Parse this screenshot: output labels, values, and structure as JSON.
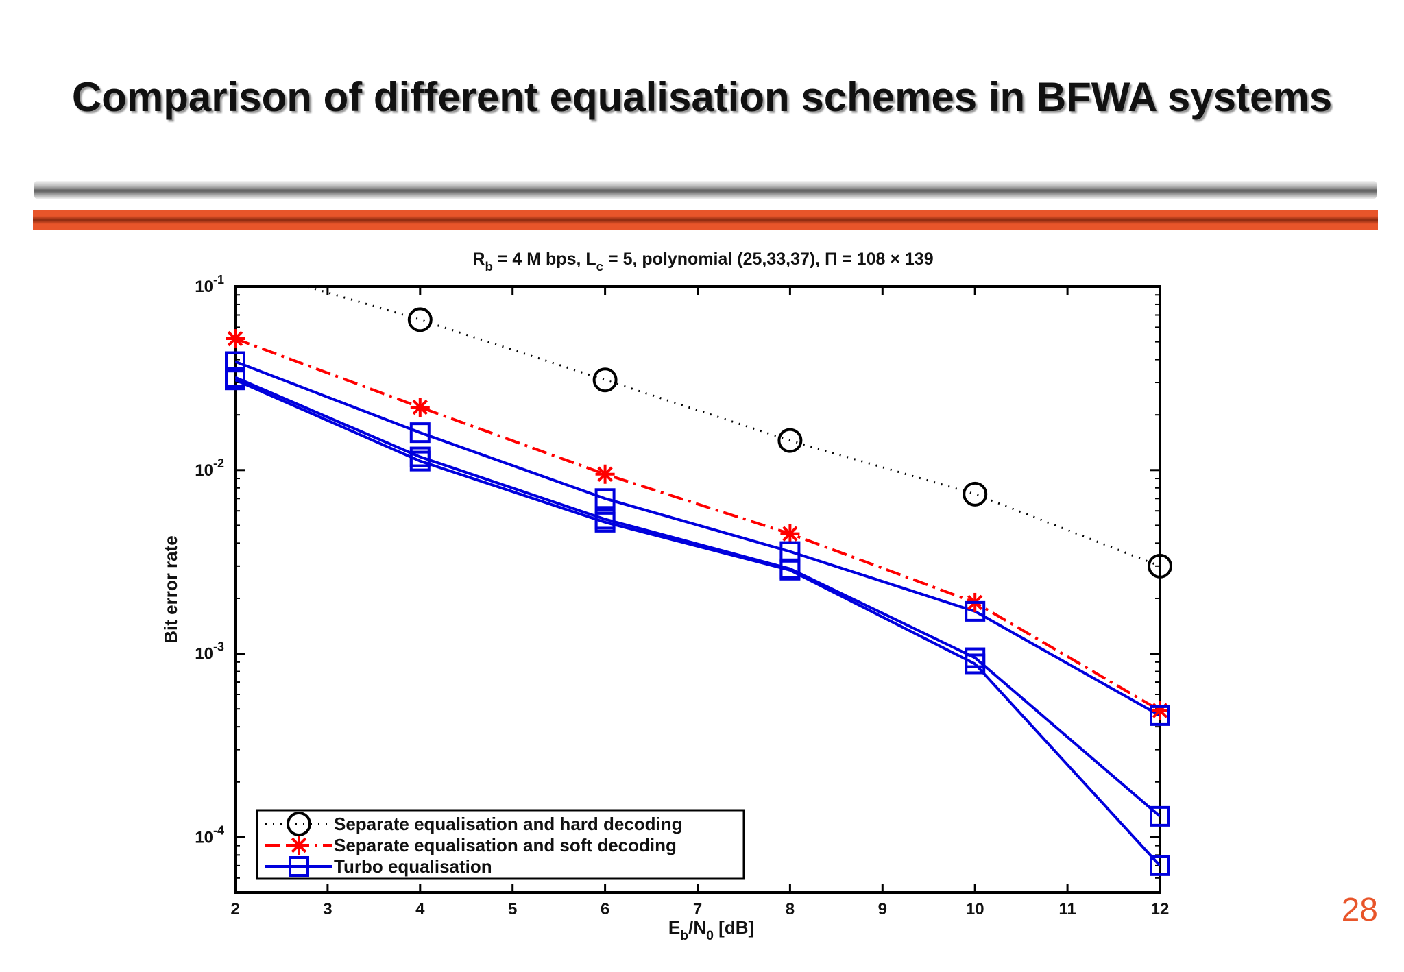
{
  "slide": {
    "title": "Comparison of different equalisation schemes in BFWA systems",
    "page_number": "28"
  },
  "colors": {
    "accent_orange": "#e8552a",
    "hard_decoding": "#000000",
    "soft_decoding": "#ff0000",
    "turbo": "#0000dd"
  },
  "chart_data": {
    "type": "line",
    "title": {
      "parts": [
        "R",
        "b",
        " = 4 M bps,  L",
        "c",
        " = 5, polynomial (25,33,37), Π = 108 × 139"
      ]
    },
    "xlabel": {
      "parts": [
        "E",
        "b",
        "/N",
        "0",
        " [dB]"
      ]
    },
    "ylabel": "Bit error rate",
    "x_scale": "linear",
    "y_scale": "log",
    "xlim": [
      2,
      12
    ],
    "ylim": [
      5e-05,
      0.1
    ],
    "x_ticks": [
      "2",
      "3",
      "4",
      "5",
      "6",
      "7",
      "8",
      "9",
      "10",
      "11",
      "12"
    ],
    "y_ticks": [
      {
        "value": 0.1,
        "base": "10",
        "exp": "-1"
      },
      {
        "value": 0.01,
        "base": "10",
        "exp": "-2"
      },
      {
        "value": 0.001,
        "base": "10",
        "exp": "-3"
      },
      {
        "value": 0.0001,
        "base": "10",
        "exp": "-4"
      }
    ],
    "grid": false,
    "legend_position": "bottom-left",
    "series": [
      {
        "name": "Separate equalisation and hard decoding",
        "color": "#000000",
        "line": "dotted",
        "marker": "circle",
        "x": [
          2,
          4,
          6,
          8,
          10,
          12
        ],
        "y": [
          0.13,
          0.066,
          0.031,
          0.0145,
          0.0074,
          0.003
        ]
      },
      {
        "name": "Separate equalisation and soft decoding",
        "color": "#ff0000",
        "line": "dashdot",
        "marker": "star",
        "x": [
          2,
          4,
          6,
          8,
          10,
          12
        ],
        "y": [
          0.052,
          0.022,
          0.0095,
          0.0045,
          0.0019,
          0.00049
        ]
      },
      {
        "name": "Turbo equalisation",
        "color": "#0000dd",
        "line": "solid",
        "marker": "square",
        "x": [
          2,
          4,
          6,
          8,
          10,
          12
        ],
        "y": [
          0.039,
          0.016,
          0.007,
          0.0036,
          0.0017,
          0.00046
        ]
      },
      {
        "color": "#0000dd",
        "line": "solid",
        "marker": "square",
        "x": [
          2,
          4,
          6,
          8,
          10,
          12
        ],
        "y": [
          0.032,
          0.0118,
          0.0054,
          0.0029,
          0.00095,
          0.00013
        ]
      },
      {
        "color": "#0000dd",
        "line": "solid",
        "marker": "square",
        "x": [
          2,
          4,
          6,
          8,
          10,
          12
        ],
        "y": [
          0.031,
          0.0112,
          0.0052,
          0.00285,
          0.00088,
          7e-05
        ]
      }
    ],
    "legend_entries": [
      0,
      1,
      2
    ]
  }
}
